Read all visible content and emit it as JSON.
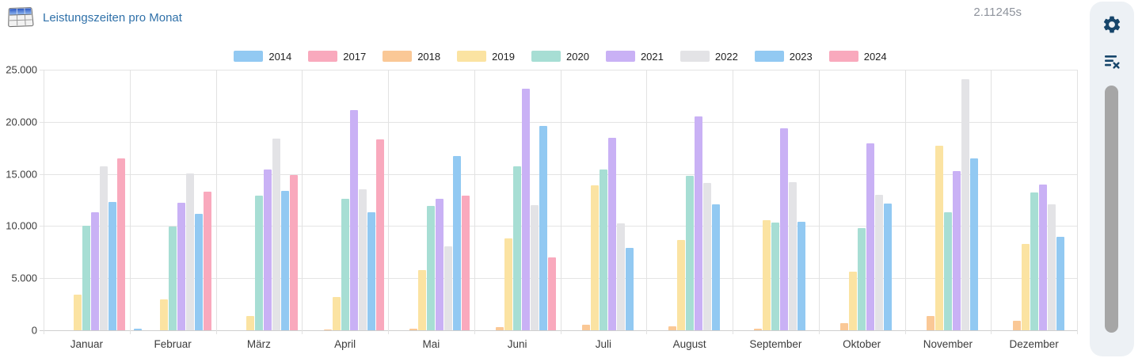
{
  "header": {
    "title": "Leistungszeiten pro Monat",
    "duration": "2.11245s",
    "title_color": "#3071a9",
    "icon": "table-icon"
  },
  "side_panel": {
    "icons": [
      "gear-icon",
      "clear-list-icon"
    ],
    "icon_color": "#17466b",
    "background": "#edf1f5",
    "scrollbar": "vertical-scrollbar"
  },
  "chart_data": {
    "type": "bar",
    "title": "Leistungszeiten pro Monat",
    "xlabel": "",
    "ylabel": "",
    "ylim": [
      0,
      25000
    ],
    "ytick_labels": [
      "0",
      "5.000",
      "10.000",
      "15.000",
      "20.000",
      "25.000"
    ],
    "ytick_values": [
      0,
      5000,
      10000,
      15000,
      20000,
      25000
    ],
    "grid": true,
    "legend_position": "top-center",
    "categories": [
      "Januar",
      "Februar",
      "März",
      "April",
      "Mai",
      "Juni",
      "Juli",
      "August",
      "September",
      "Oktober",
      "November",
      "Dezember"
    ],
    "series": [
      {
        "name": "2014",
        "color": "#92c9f2",
        "values": [
          0,
          150,
          0,
          0,
          0,
          0,
          0,
          0,
          0,
          0,
          0,
          0
        ]
      },
      {
        "name": "2017",
        "color": "#f9a9bd",
        "values": [
          0,
          0,
          0,
          0,
          0,
          0,
          0,
          0,
          0,
          0,
          0,
          0
        ]
      },
      {
        "name": "2018",
        "color": "#fac896",
        "values": [
          0,
          0,
          0,
          100,
          150,
          300,
          500,
          400,
          150,
          650,
          1400,
          900
        ]
      },
      {
        "name": "2019",
        "color": "#fbe3a2",
        "values": [
          3400,
          3000,
          1400,
          3200,
          5750,
          8800,
          13900,
          8650,
          10600,
          5600,
          17700,
          8300
        ]
      },
      {
        "name": "2020",
        "color": "#a7ded4",
        "values": [
          10000,
          9950,
          12900,
          12650,
          11900,
          15700,
          15400,
          14800,
          10350,
          9800,
          11300,
          13200
        ]
      },
      {
        "name": "2021",
        "color": "#c9b1f5",
        "values": [
          11350,
          12250,
          15400,
          21100,
          12600,
          23200,
          18450,
          20550,
          19400,
          17900,
          15250,
          14000
        ]
      },
      {
        "name": "2022",
        "color": "#e3e3e6",
        "values": [
          15750,
          15050,
          18400,
          13500,
          8050,
          12000,
          10250,
          14150,
          14200,
          13000,
          24100,
          12050
        ]
      },
      {
        "name": "2023",
        "color": "#92c9f2",
        "values": [
          12300,
          11150,
          13400,
          11300,
          16700,
          19600,
          7900,
          12050,
          10400,
          12150,
          16500,
          9000
        ]
      },
      {
        "name": "2024",
        "color": "#f9a9bd",
        "values": [
          16500,
          13300,
          14900,
          18350,
          12950,
          7000,
          0,
          0,
          0,
          0,
          0,
          0
        ]
      }
    ]
  }
}
